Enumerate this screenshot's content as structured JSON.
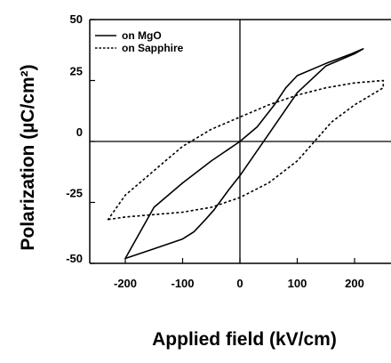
{
  "chart_data": {
    "type": "line",
    "title": "",
    "xlabel": "Applied field  (kV/cm)",
    "ylabel": "Polarization  (µC/cm²)",
    "xlim": [
      -240,
      250
    ],
    "ylim": [
      -50,
      50
    ],
    "xticks": [
      -200,
      -100,
      0,
      100,
      200
    ],
    "xtick_labels": [
      "-200",
      "-100",
      "0",
      "100",
      "200"
    ],
    "yticks": [
      -50,
      -25,
      0,
      25,
      50
    ],
    "ytick_labels": [
      "-50",
      "-25",
      "0",
      "25",
      "50"
    ],
    "grid": false,
    "zero_lines": true,
    "legend_position": "top-left",
    "series": [
      {
        "name": "on MgO",
        "style": "solid",
        "color": "#000000",
        "x": [
          -200,
          -150,
          -100,
          -80,
          -60,
          -45,
          -20,
          0,
          50,
          100,
          150,
          200,
          215,
          195,
          150,
          100,
          80,
          60,
          30,
          0,
          -50,
          -100,
          -150,
          -200
        ],
        "y": [
          -48,
          -44,
          -40,
          -37,
          -32,
          -28,
          -20,
          -14,
          3,
          20,
          31,
          36,
          38,
          36,
          32,
          27,
          22,
          15,
          6,
          0,
          -8,
          -17,
          -27,
          -48
        ]
      },
      {
        "name": "on Sapphire",
        "style": "dashed",
        "color": "#000000",
        "x": [
          -230,
          -200,
          -150,
          -100,
          -50,
          0,
          50,
          100,
          130,
          160,
          200,
          250,
          250,
          200,
          150,
          100,
          50,
          0,
          -50,
          -100,
          -130,
          -160,
          -200,
          -230
        ],
        "y": [
          -32,
          -31,
          -30,
          -29,
          -27,
          -23,
          -17,
          -8,
          0,
          8,
          15,
          22,
          25,
          24,
          22,
          19,
          15,
          10,
          5,
          -2,
          -8,
          -14,
          -22,
          -32
        ]
      }
    ]
  }
}
